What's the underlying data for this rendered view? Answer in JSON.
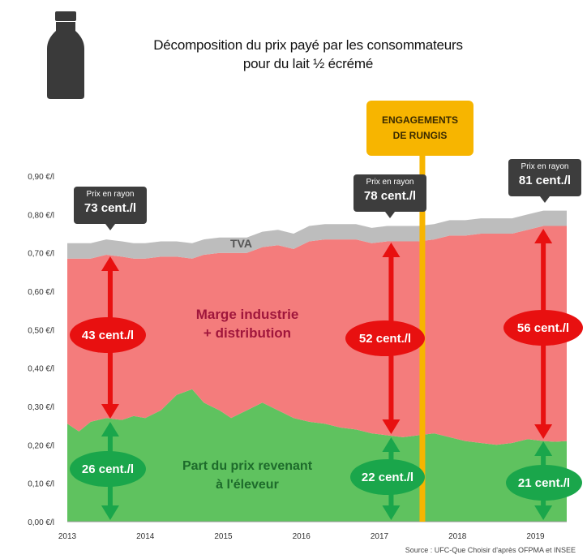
{
  "title_line1": "Décomposition du prix payé par les consommateurs",
  "title_line2": "pour du lait ½ écrémé",
  "source": "Source : UFC-Que Choisir d'après OFPMA et INSEE",
  "colors": {
    "tva": "#bdbdbd",
    "marge": "#f47c7c",
    "eleveur": "#5fc25f",
    "engagement_line": "#f7b500",
    "arrow_red": "#e81010",
    "arrow_green": "#1aa64b"
  },
  "engagements": {
    "line1": "ENGAGEMENTS",
    "line2": "DE RUNGIS",
    "year": 2017.55
  },
  "price_boxes": [
    {
      "label": "Prix en rayon",
      "value": "73 cent./l",
      "year": 2013.55
    },
    {
      "label": "Prix en rayon",
      "value": "78 cent./l",
      "year": 2017.15
    },
    {
      "label": "Prix en rayon",
      "value": "81 cent./l",
      "year": 2019.1
    }
  ],
  "marge_values": [
    "43 cent./l",
    "52 cent./l",
    "56 cent./l"
  ],
  "eleveur_values": [
    "26 cent./l",
    "22 cent./l",
    "21 cent./l"
  ],
  "labels": {
    "tva": "TVA",
    "marge_line1": "Marge industrie",
    "marge_line2": "+ distribution",
    "eleveur_line1": "Part du prix revenant",
    "eleveur_line2": "à l'éleveur"
  },
  "chart_data": {
    "type": "area",
    "stacked": true,
    "title": "Décomposition du prix payé par les consommateurs pour du lait ½ écrémé",
    "x_ticks": [
      "2013",
      "2014",
      "2015",
      "2016",
      "2017",
      "2018",
      "2019"
    ],
    "y_ticks": [
      "0,00 €/l",
      "0,10 €/l",
      "0,20 €/l",
      "0,30 €/l",
      "0,40 €/l",
      "0,50 €/l",
      "0,60 €/l",
      "0,70 €/l",
      "0,80 €/l",
      "0,90 €/l"
    ],
    "ylim": [
      0,
      0.9
    ],
    "xlim": [
      2013,
      2019.4
    ],
    "x": [
      2013.0,
      2013.15,
      2013.3,
      2013.5,
      2013.7,
      2013.85,
      2014.0,
      2014.2,
      2014.4,
      2014.6,
      2014.75,
      2014.95,
      2015.1,
      2015.3,
      2015.5,
      2015.7,
      2015.9,
      2016.1,
      2016.3,
      2016.5,
      2016.7,
      2016.9,
      2017.1,
      2017.3,
      2017.5,
      2017.7,
      2017.9,
      2018.1,
      2018.3,
      2018.5,
      2018.7,
      2018.9,
      2019.1,
      2019.25,
      2019.4
    ],
    "series": [
      {
        "name": "Part du prix revenant à l'éleveur",
        "values": [
          0.255,
          0.235,
          0.26,
          0.27,
          0.265,
          0.275,
          0.27,
          0.29,
          0.33,
          0.345,
          0.31,
          0.29,
          0.27,
          0.29,
          0.31,
          0.29,
          0.27,
          0.26,
          0.255,
          0.245,
          0.24,
          0.23,
          0.225,
          0.22,
          0.225,
          0.23,
          0.22,
          0.21,
          0.205,
          0.2,
          0.205,
          0.215,
          0.21,
          0.208,
          0.21
        ]
      },
      {
        "name": "Marge industrie + distribution",
        "values": [
          0.43,
          0.45,
          0.425,
          0.425,
          0.425,
          0.41,
          0.415,
          0.4,
          0.36,
          0.34,
          0.385,
          0.41,
          0.43,
          0.41,
          0.405,
          0.43,
          0.44,
          0.47,
          0.48,
          0.49,
          0.495,
          0.495,
          0.505,
          0.51,
          0.505,
          0.505,
          0.525,
          0.535,
          0.545,
          0.55,
          0.545,
          0.545,
          0.56,
          0.562,
          0.56
        ]
      },
      {
        "name": "TVA",
        "values": [
          0.04,
          0.04,
          0.04,
          0.04,
          0.04,
          0.04,
          0.04,
          0.04,
          0.04,
          0.04,
          0.04,
          0.04,
          0.04,
          0.04,
          0.04,
          0.04,
          0.04,
          0.04,
          0.04,
          0.04,
          0.04,
          0.04,
          0.04,
          0.04,
          0.04,
          0.04,
          0.04,
          0.04,
          0.04,
          0.04,
          0.04,
          0.04,
          0.04,
          0.04,
          0.04
        ]
      }
    ]
  }
}
